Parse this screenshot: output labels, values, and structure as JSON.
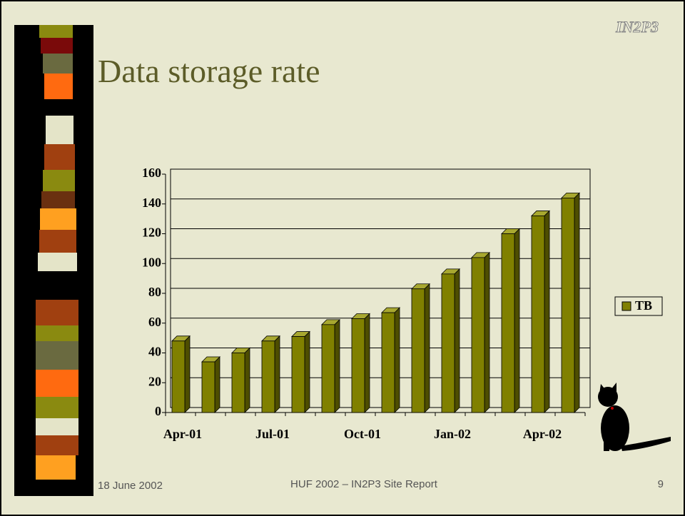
{
  "chart_data": {
    "type": "bar",
    "title": "Data storage rate",
    "logo": "IN2P3",
    "categories": [
      "Apr-01",
      null,
      null,
      "Jul-01",
      null,
      null,
      "Oct-01",
      null,
      null,
      "Jan-02",
      null,
      null,
      "Apr-02",
      null
    ],
    "series": [
      {
        "name": "TB",
        "color": "#808000",
        "values": [
          48,
          34,
          40,
          48,
          51,
          59,
          63,
          67,
          83,
          93,
          104,
          120,
          132,
          144
        ]
      }
    ],
    "ylim": [
      0,
      160
    ],
    "yticks": [
      0,
      20,
      40,
      60,
      80,
      100,
      120,
      140,
      160
    ],
    "grid": true,
    "legend": "right",
    "footer": {
      "date": "18 June 2002",
      "center": "HUF 2002 – IN2P3 Site Report",
      "page": "9"
    }
  }
}
